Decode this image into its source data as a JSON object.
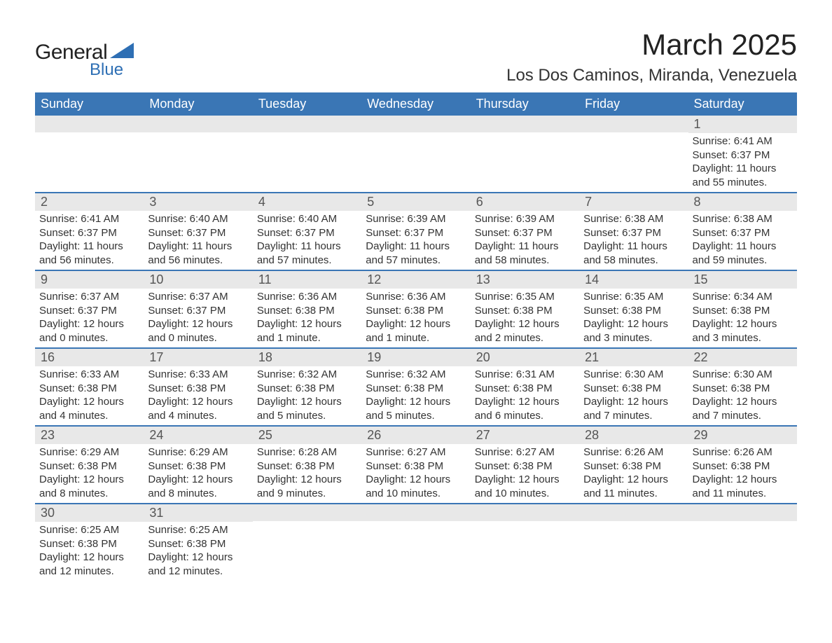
{
  "brand": {
    "text1": "General",
    "text2": "Blue",
    "shape_color": "#2e6fb4",
    "text1_color": "#222222",
    "text2_color": "#2e6fb4"
  },
  "header": {
    "title": "March 2025",
    "location": "Los Dos Caminos, Miranda, Venezuela"
  },
  "colors": {
    "header_bg": "#3a76b5",
    "header_fg": "#ffffff",
    "daybar_bg": "#e8e8e8",
    "row_divider": "#3a76b5",
    "body_text": "#333333",
    "page_bg": "#ffffff"
  },
  "calendar": {
    "type": "table",
    "columns": [
      "Sunday",
      "Monday",
      "Tuesday",
      "Wednesday",
      "Thursday",
      "Friday",
      "Saturday"
    ],
    "weeks": [
      [
        null,
        null,
        null,
        null,
        null,
        null,
        {
          "day": "1",
          "sunrise": "Sunrise: 6:41 AM",
          "sunset": "Sunset: 6:37 PM",
          "daylight1": "Daylight: 11 hours",
          "daylight2": "and 55 minutes."
        }
      ],
      [
        {
          "day": "2",
          "sunrise": "Sunrise: 6:41 AM",
          "sunset": "Sunset: 6:37 PM",
          "daylight1": "Daylight: 11 hours",
          "daylight2": "and 56 minutes."
        },
        {
          "day": "3",
          "sunrise": "Sunrise: 6:40 AM",
          "sunset": "Sunset: 6:37 PM",
          "daylight1": "Daylight: 11 hours",
          "daylight2": "and 56 minutes."
        },
        {
          "day": "4",
          "sunrise": "Sunrise: 6:40 AM",
          "sunset": "Sunset: 6:37 PM",
          "daylight1": "Daylight: 11 hours",
          "daylight2": "and 57 minutes."
        },
        {
          "day": "5",
          "sunrise": "Sunrise: 6:39 AM",
          "sunset": "Sunset: 6:37 PM",
          "daylight1": "Daylight: 11 hours",
          "daylight2": "and 57 minutes."
        },
        {
          "day": "6",
          "sunrise": "Sunrise: 6:39 AM",
          "sunset": "Sunset: 6:37 PM",
          "daylight1": "Daylight: 11 hours",
          "daylight2": "and 58 minutes."
        },
        {
          "day": "7",
          "sunrise": "Sunrise: 6:38 AM",
          "sunset": "Sunset: 6:37 PM",
          "daylight1": "Daylight: 11 hours",
          "daylight2": "and 58 minutes."
        },
        {
          "day": "8",
          "sunrise": "Sunrise: 6:38 AM",
          "sunset": "Sunset: 6:37 PM",
          "daylight1": "Daylight: 11 hours",
          "daylight2": "and 59 minutes."
        }
      ],
      [
        {
          "day": "9",
          "sunrise": "Sunrise: 6:37 AM",
          "sunset": "Sunset: 6:37 PM",
          "daylight1": "Daylight: 12 hours",
          "daylight2": "and 0 minutes."
        },
        {
          "day": "10",
          "sunrise": "Sunrise: 6:37 AM",
          "sunset": "Sunset: 6:37 PM",
          "daylight1": "Daylight: 12 hours",
          "daylight2": "and 0 minutes."
        },
        {
          "day": "11",
          "sunrise": "Sunrise: 6:36 AM",
          "sunset": "Sunset: 6:38 PM",
          "daylight1": "Daylight: 12 hours",
          "daylight2": "and 1 minute."
        },
        {
          "day": "12",
          "sunrise": "Sunrise: 6:36 AM",
          "sunset": "Sunset: 6:38 PM",
          "daylight1": "Daylight: 12 hours",
          "daylight2": "and 1 minute."
        },
        {
          "day": "13",
          "sunrise": "Sunrise: 6:35 AM",
          "sunset": "Sunset: 6:38 PM",
          "daylight1": "Daylight: 12 hours",
          "daylight2": "and 2 minutes."
        },
        {
          "day": "14",
          "sunrise": "Sunrise: 6:35 AM",
          "sunset": "Sunset: 6:38 PM",
          "daylight1": "Daylight: 12 hours",
          "daylight2": "and 3 minutes."
        },
        {
          "day": "15",
          "sunrise": "Sunrise: 6:34 AM",
          "sunset": "Sunset: 6:38 PM",
          "daylight1": "Daylight: 12 hours",
          "daylight2": "and 3 minutes."
        }
      ],
      [
        {
          "day": "16",
          "sunrise": "Sunrise: 6:33 AM",
          "sunset": "Sunset: 6:38 PM",
          "daylight1": "Daylight: 12 hours",
          "daylight2": "and 4 minutes."
        },
        {
          "day": "17",
          "sunrise": "Sunrise: 6:33 AM",
          "sunset": "Sunset: 6:38 PM",
          "daylight1": "Daylight: 12 hours",
          "daylight2": "and 4 minutes."
        },
        {
          "day": "18",
          "sunrise": "Sunrise: 6:32 AM",
          "sunset": "Sunset: 6:38 PM",
          "daylight1": "Daylight: 12 hours",
          "daylight2": "and 5 minutes."
        },
        {
          "day": "19",
          "sunrise": "Sunrise: 6:32 AM",
          "sunset": "Sunset: 6:38 PM",
          "daylight1": "Daylight: 12 hours",
          "daylight2": "and 5 minutes."
        },
        {
          "day": "20",
          "sunrise": "Sunrise: 6:31 AM",
          "sunset": "Sunset: 6:38 PM",
          "daylight1": "Daylight: 12 hours",
          "daylight2": "and 6 minutes."
        },
        {
          "day": "21",
          "sunrise": "Sunrise: 6:30 AM",
          "sunset": "Sunset: 6:38 PM",
          "daylight1": "Daylight: 12 hours",
          "daylight2": "and 7 minutes."
        },
        {
          "day": "22",
          "sunrise": "Sunrise: 6:30 AM",
          "sunset": "Sunset: 6:38 PM",
          "daylight1": "Daylight: 12 hours",
          "daylight2": "and 7 minutes."
        }
      ],
      [
        {
          "day": "23",
          "sunrise": "Sunrise: 6:29 AM",
          "sunset": "Sunset: 6:38 PM",
          "daylight1": "Daylight: 12 hours",
          "daylight2": "and 8 minutes."
        },
        {
          "day": "24",
          "sunrise": "Sunrise: 6:29 AM",
          "sunset": "Sunset: 6:38 PM",
          "daylight1": "Daylight: 12 hours",
          "daylight2": "and 8 minutes."
        },
        {
          "day": "25",
          "sunrise": "Sunrise: 6:28 AM",
          "sunset": "Sunset: 6:38 PM",
          "daylight1": "Daylight: 12 hours",
          "daylight2": "and 9 minutes."
        },
        {
          "day": "26",
          "sunrise": "Sunrise: 6:27 AM",
          "sunset": "Sunset: 6:38 PM",
          "daylight1": "Daylight: 12 hours",
          "daylight2": "and 10 minutes."
        },
        {
          "day": "27",
          "sunrise": "Sunrise: 6:27 AM",
          "sunset": "Sunset: 6:38 PM",
          "daylight1": "Daylight: 12 hours",
          "daylight2": "and 10 minutes."
        },
        {
          "day": "28",
          "sunrise": "Sunrise: 6:26 AM",
          "sunset": "Sunset: 6:38 PM",
          "daylight1": "Daylight: 12 hours",
          "daylight2": "and 11 minutes."
        },
        {
          "day": "29",
          "sunrise": "Sunrise: 6:26 AM",
          "sunset": "Sunset: 6:38 PM",
          "daylight1": "Daylight: 12 hours",
          "daylight2": "and 11 minutes."
        }
      ],
      [
        {
          "day": "30",
          "sunrise": "Sunrise: 6:25 AM",
          "sunset": "Sunset: 6:38 PM",
          "daylight1": "Daylight: 12 hours",
          "daylight2": "and 12 minutes."
        },
        {
          "day": "31",
          "sunrise": "Sunrise: 6:25 AM",
          "sunset": "Sunset: 6:38 PM",
          "daylight1": "Daylight: 12 hours",
          "daylight2": "and 12 minutes."
        },
        null,
        null,
        null,
        null,
        null
      ]
    ]
  }
}
